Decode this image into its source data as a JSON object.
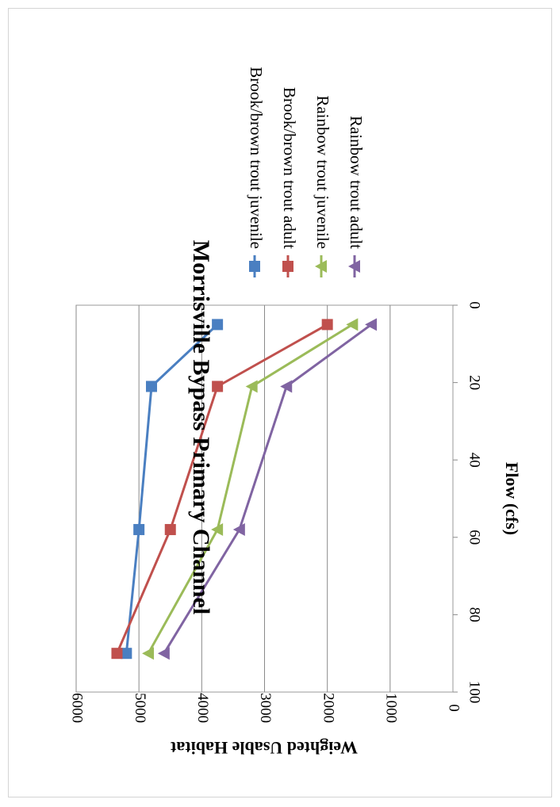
{
  "chart_data": {
    "type": "line",
    "orientation": "rotated-90-clockwise",
    "title": "Morrisville  Bypass Primary  Channel",
    "xlabel": "Flow (cfs)",
    "ylabel": "Weighted Usable Habitat",
    "xlim": [
      0,
      100
    ],
    "ylim": [
      0,
      6000
    ],
    "xticks": [
      0,
      20,
      40,
      60,
      80,
      100
    ],
    "yticks": [
      0,
      1000,
      2000,
      3000,
      4000,
      5000,
      6000
    ],
    "grid": "horizontal-major",
    "legend_position": "right",
    "series": [
      {
        "name": "Brook/brown trout juvenile",
        "color": "#4a7fc1",
        "marker": "square",
        "points": [
          [
            5,
            3750
          ],
          [
            21,
            4800
          ],
          [
            58,
            5000
          ],
          [
            90,
            5200
          ]
        ]
      },
      {
        "name": "Brook/brown trout adult",
        "color": "#c0504d",
        "marker": "square",
        "points": [
          [
            5,
            2000
          ],
          [
            21,
            3750
          ],
          [
            58,
            4500
          ],
          [
            90,
            5350
          ]
        ]
      },
      {
        "name": "Rainbow trout juvenile",
        "color": "#9bbb59",
        "marker": "triangle",
        "points": [
          [
            5,
            1600
          ],
          [
            21,
            3200
          ],
          [
            58,
            3750
          ],
          [
            90,
            4850
          ]
        ]
      },
      {
        "name": "Rainbow trout adult",
        "color": "#8064a2",
        "marker": "triangle",
        "points": [
          [
            5,
            1300
          ],
          [
            21,
            2650
          ],
          [
            58,
            3400
          ],
          [
            90,
            4600
          ]
        ]
      }
    ]
  }
}
